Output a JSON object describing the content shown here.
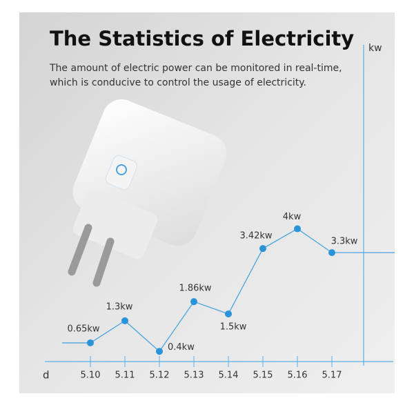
{
  "chart_data": {
    "type": "line",
    "title": "The Statistics of Electricity",
    "subtitle": [
      "The amount of electric power can be monitored in real-time,",
      "which is conducive to control the usage of electricity."
    ],
    "x_label": "d",
    "y_label": "kw",
    "categories": [
      "5.10",
      "5.11",
      "5.12",
      "5.13",
      "5.14",
      "5.15",
      "5.16",
      "5.17"
    ],
    "values": [
      0.65,
      1.3,
      0.4,
      1.86,
      1.5,
      3.42,
      4,
      3.3
    ],
    "value_labels": [
      "0.65kw",
      "1.3kw",
      "0.4kw",
      "1.86kw",
      "1.5kw",
      "3.42kw",
      "4kw",
      "3.3kw"
    ],
    "ylim": [
      0,
      9.4
    ],
    "color": "#4aa3e0"
  }
}
